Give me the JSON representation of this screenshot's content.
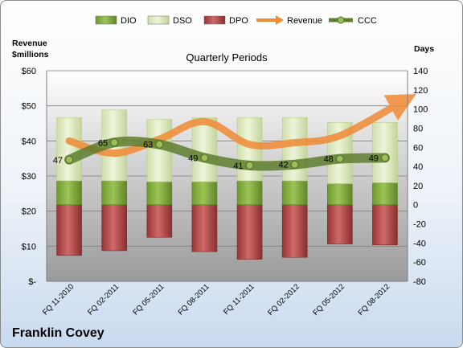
{
  "company": "Franklin Covey",
  "chart_data": {
    "type": "bar",
    "title": "Quarterly Periods",
    "left_axis_title": [
      "Revenue",
      "$millions"
    ],
    "right_axis_title": "Days",
    "left_axis": {
      "min": 0,
      "max": 60,
      "step": 10,
      "ticks": [
        "$-",
        "$10",
        "$20",
        "$30",
        "$40",
        "$50",
        "$60"
      ]
    },
    "right_axis": {
      "min": -80,
      "max": 140,
      "step": 20
    },
    "categories": [
      "FQ 11-2010",
      "FQ 02-2011",
      "FQ 05-2011",
      "FQ 08-2011",
      "FQ 11-2011",
      "FQ 02-2012",
      "FQ 05-2012",
      "FQ 08-2012"
    ],
    "grid": true,
    "legend": "top",
    "series": [
      {
        "name": "DIO",
        "kind": "stacked-bar",
        "axis": "right",
        "values": [
          25,
          25,
          24,
          24,
          25,
          25,
          22,
          23
        ],
        "color": "#7faa3c"
      },
      {
        "name": "DSO",
        "kind": "stacked-bar",
        "axis": "right",
        "values": [
          66,
          74,
          65,
          67,
          66,
          66,
          64,
          63
        ],
        "color": "#dbe8bc"
      },
      {
        "name": "DPO",
        "kind": "negative-bar",
        "axis": "right",
        "values": [
          -53,
          -48,
          -34,
          -49,
          -57,
          -55,
          -41,
          -42
        ],
        "color": "#b74a4a"
      },
      {
        "name": "Revenue",
        "kind": "line",
        "axis": "left",
        "values": [
          40,
          36.5,
          40.5,
          45.5,
          39,
          39.5,
          41.5,
          51
        ],
        "color": "#f08a36"
      },
      {
        "name": "CCC",
        "kind": "line",
        "axis": "right",
        "values": [
          47,
          65,
          63,
          49,
          41,
          42,
          48,
          49
        ],
        "labels": [
          "47",
          "65",
          "63",
          "49",
          "41",
          "42",
          "48",
          "49"
        ],
        "color": "#5e7d2e"
      }
    ]
  }
}
